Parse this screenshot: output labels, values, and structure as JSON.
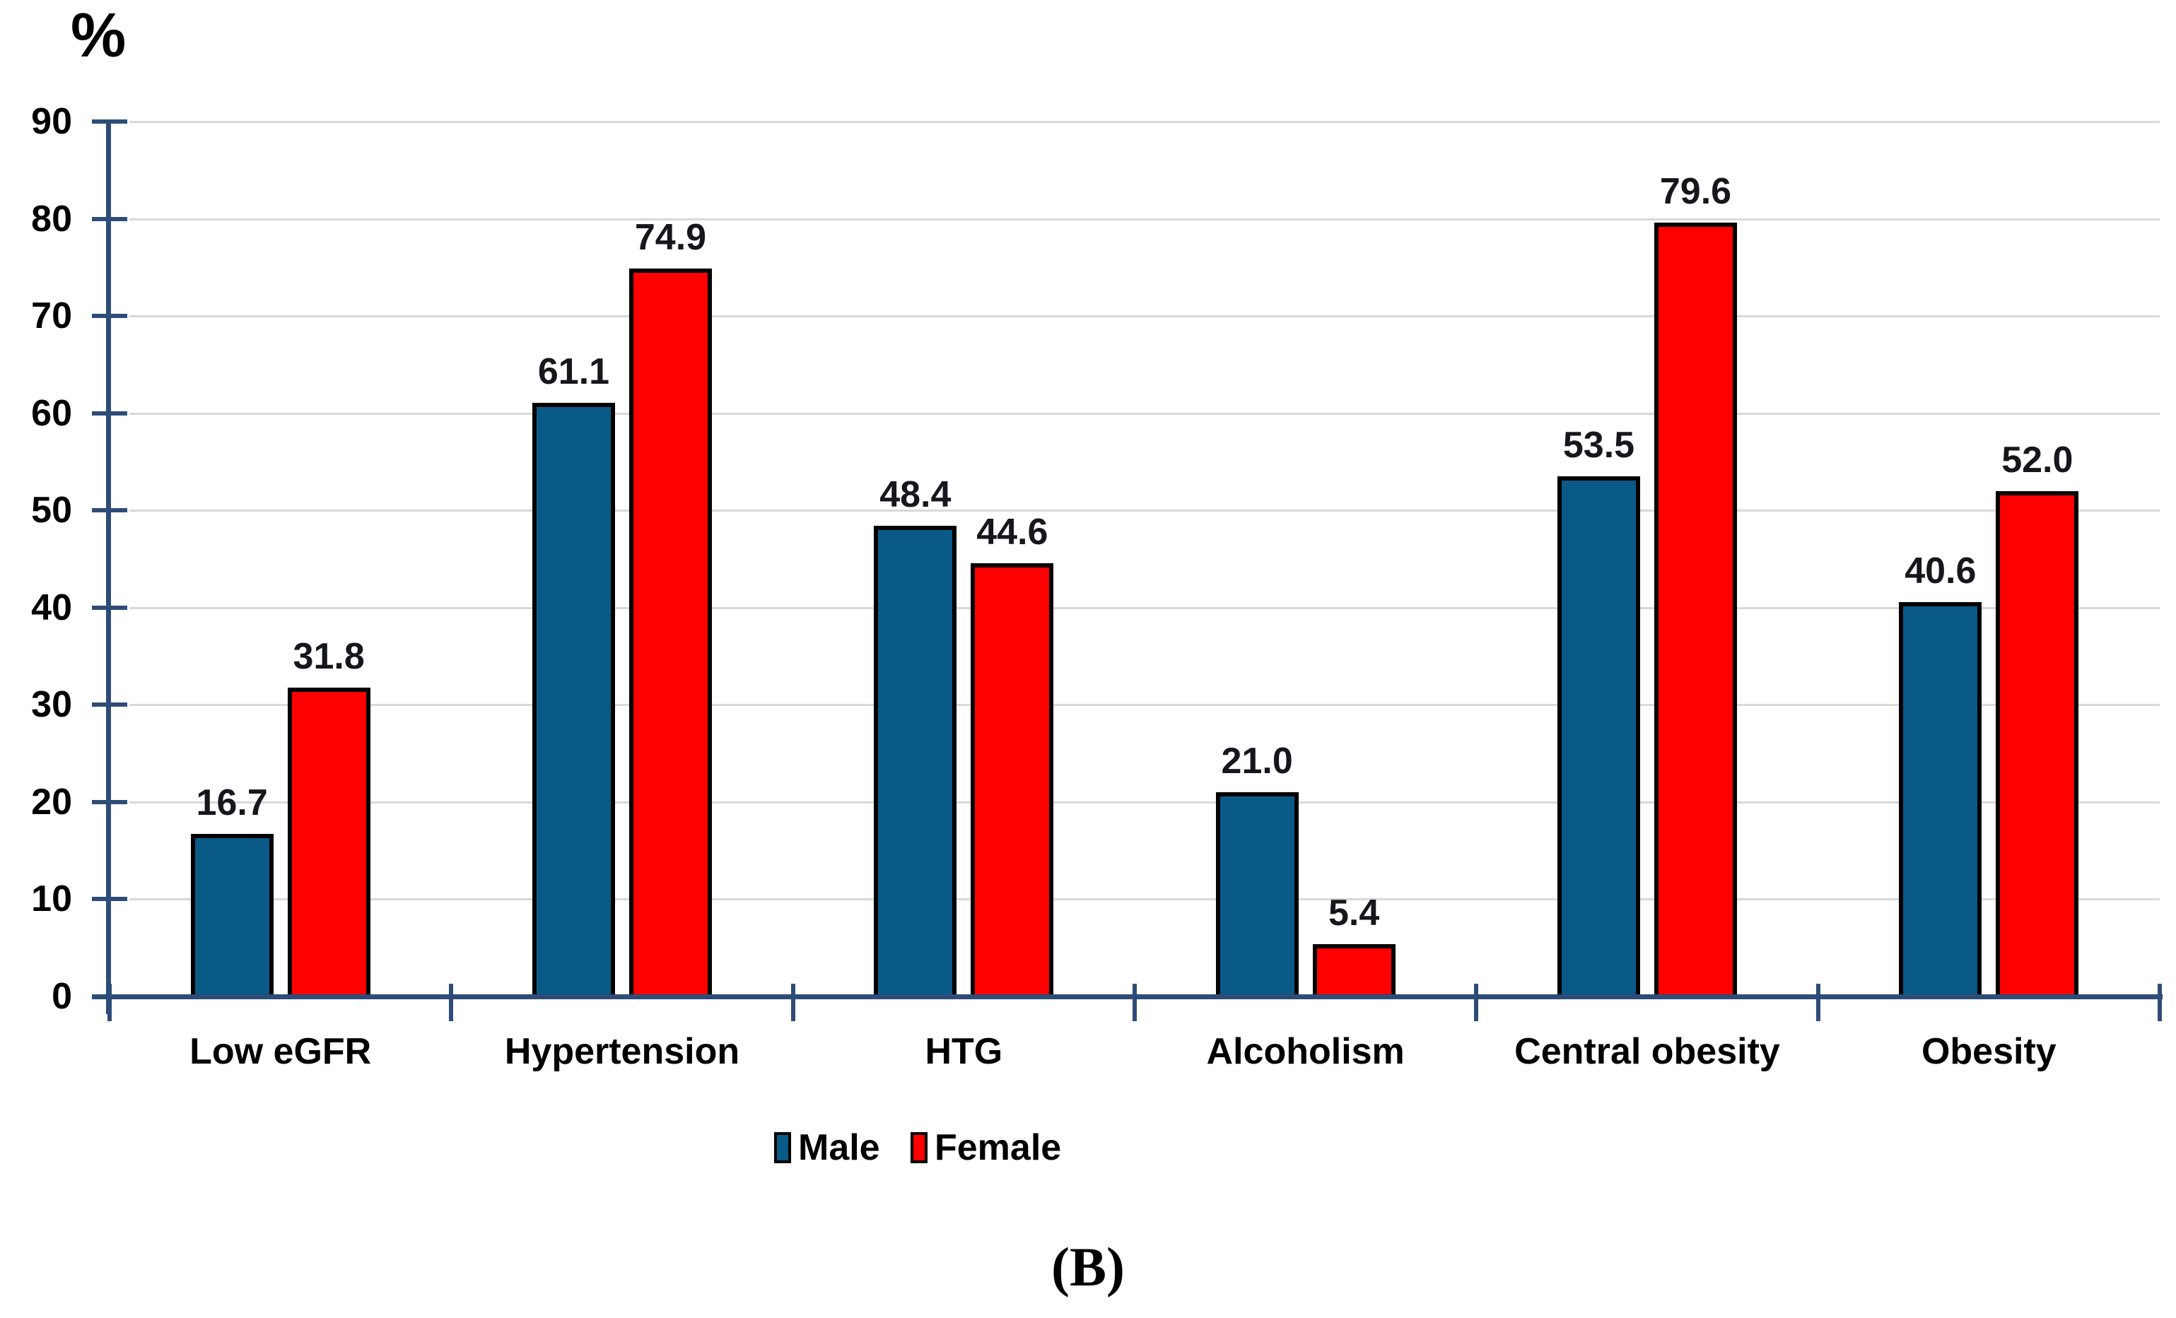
{
  "chart_data": {
    "type": "bar",
    "title": "",
    "xlabel": "",
    "ylabel": "%",
    "ylim": [
      0,
      90
    ],
    "ytick_step": 10,
    "grid": true,
    "legend_position": "bottom",
    "categories": [
      "Low eGFR",
      "Hypertension",
      "HTG",
      "Alcoholism",
      "Central obesity",
      "Obesity"
    ],
    "series": [
      {
        "name": "Male",
        "color": "#0a5a87",
        "values": [
          16.7,
          61.1,
          48.4,
          21.0,
          53.5,
          40.6
        ]
      },
      {
        "name": "Female",
        "color": "#ff0000",
        "values": [
          31.8,
          74.9,
          44.6,
          5.4,
          79.6,
          52.0
        ]
      }
    ],
    "data_labels": true,
    "caption": "(B)",
    "colors": {
      "axis": "#2e4c78",
      "gridline": "#d9d9d9",
      "bar_border": "#000000",
      "text": "#000000"
    }
  }
}
